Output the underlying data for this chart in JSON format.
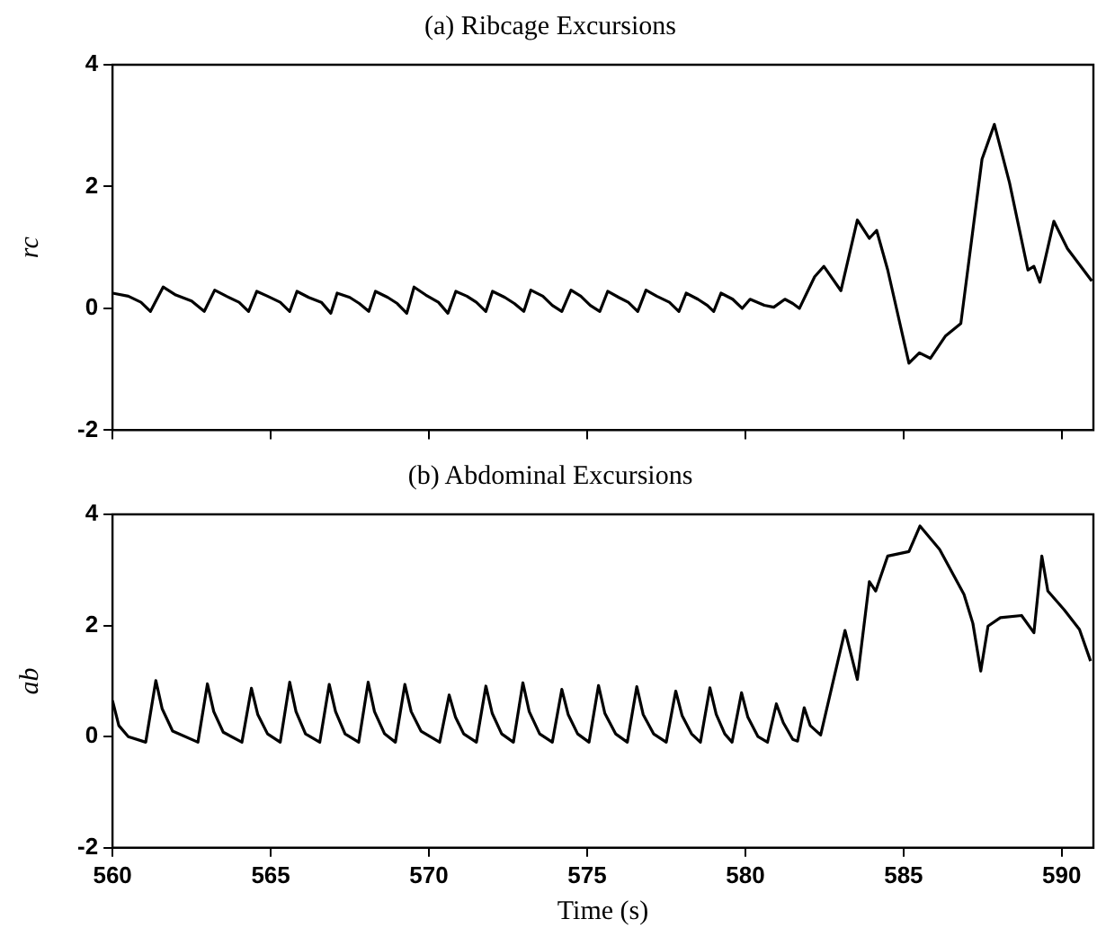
{
  "chart_data": [
    {
      "type": "line",
      "title": "(a) Ribcage Excursions",
      "ylabel": "rc",
      "marker": "none",
      "line_style": "solid",
      "tick_labels": "y",
      "xlim": [
        560,
        591
      ],
      "ylim": [
        -2,
        4
      ],
      "xticks": [
        560,
        565,
        570,
        575,
        580,
        585,
        590
      ],
      "yticks": [
        -2,
        0,
        2,
        4
      ],
      "series": [
        {
          "color": "#000000",
          "x": [
            560,
            560.5,
            560.9,
            561.2,
            561.6,
            562.0,
            562.5,
            562.9,
            563.23,
            563.6,
            564.0,
            564.3,
            564.56,
            564.9,
            565.3,
            565.6,
            565.83,
            566.2,
            566.6,
            566.9,
            567.1,
            567.5,
            567.8,
            568.1,
            568.31,
            568.7,
            569.0,
            569.3,
            569.53,
            569.9,
            570.3,
            570.6,
            570.85,
            571.2,
            571.5,
            571.8,
            572.01,
            572.4,
            572.7,
            573.0,
            573.22,
            573.6,
            573.9,
            574.2,
            574.49,
            574.8,
            575.1,
            575.4,
            575.65,
            576.0,
            576.3,
            576.6,
            576.86,
            577.2,
            577.6,
            577.9,
            578.13,
            578.5,
            578.8,
            579.0,
            579.23,
            579.6,
            579.9,
            580.15,
            580.6,
            580.9,
            581.25,
            581.5,
            581.71,
            582.19,
            582.48,
            583.02,
            583.54,
            583.92,
            584.15,
            584.5,
            585.17,
            585.5,
            585.85,
            586.33,
            586.81,
            587.48,
            587.87,
            588.35,
            588.93,
            589.12,
            589.31,
            589.75,
            590.18,
            590.95
          ],
          "values": [
            0.25,
            0.2,
            0.1,
            -0.05,
            0.35,
            0.22,
            0.12,
            -0.05,
            0.3,
            0.2,
            0.1,
            -0.05,
            0.28,
            0.2,
            0.1,
            -0.05,
            0.28,
            0.18,
            0.1,
            -0.08,
            0.25,
            0.18,
            0.08,
            -0.05,
            0.28,
            0.18,
            0.08,
            -0.08,
            0.35,
            0.22,
            0.1,
            -0.08,
            0.28,
            0.2,
            0.1,
            -0.05,
            0.28,
            0.18,
            0.08,
            -0.05,
            0.3,
            0.2,
            0.05,
            -0.05,
            0.3,
            0.2,
            0.05,
            -0.05,
            0.28,
            0.18,
            0.1,
            -0.05,
            0.3,
            0.2,
            0.1,
            -0.05,
            0.25,
            0.15,
            0.05,
            -0.05,
            0.25,
            0.15,
            0.0,
            0.15,
            0.05,
            0.02,
            0.15,
            0.08,
            0.0,
            0.52,
            0.69,
            0.29,
            1.45,
            1.15,
            1.28,
            0.63,
            -0.9,
            -0.73,
            -0.82,
            -0.45,
            -0.25,
            2.45,
            3.02,
            2.06,
            0.63,
            0.69,
            0.43,
            1.43,
            0.98,
            0.45
          ]
        }
      ]
    },
    {
      "type": "line",
      "title": "(b) Abdominal Excursions",
      "xlabel": "Time (s)",
      "ylabel": "ab",
      "marker": "none",
      "line_style": "solid",
      "xlim": [
        560,
        591
      ],
      "ylim": [
        -2,
        4
      ],
      "xticks": [
        560,
        565,
        570,
        575,
        580,
        585,
        590
      ],
      "yticks": [
        -2,
        0,
        2,
        4
      ],
      "series": [
        {
          "color": "#000000",
          "x": [
            560,
            560.2,
            560.5,
            561.05,
            561.37,
            561.57,
            561.9,
            562.7,
            563.0,
            563.2,
            563.5,
            564.09,
            564.39,
            564.59,
            564.9,
            565.3,
            565.6,
            565.8,
            566.1,
            566.55,
            566.85,
            567.05,
            567.35,
            567.78,
            568.08,
            568.28,
            568.6,
            568.94,
            569.24,
            569.44,
            569.75,
            570.34,
            570.64,
            570.84,
            571.1,
            571.5,
            571.8,
            572.0,
            572.3,
            572.67,
            572.97,
            573.17,
            573.5,
            573.9,
            574.2,
            574.4,
            574.7,
            575.06,
            575.36,
            575.56,
            575.9,
            576.27,
            576.57,
            576.77,
            577.1,
            577.5,
            577.8,
            578.0,
            578.3,
            578.58,
            578.88,
            579.08,
            579.35,
            579.58,
            579.88,
            580.08,
            580.4,
            580.7,
            580.98,
            581.2,
            581.5,
            581.65,
            581.86,
            582.05,
            582.38,
            583.15,
            583.54,
            583.92,
            584.12,
            584.5,
            585.17,
            585.52,
            586.14,
            586.91,
            587.19,
            587.44,
            587.67,
            588.06,
            588.73,
            589.12,
            589.37,
            589.56,
            590.08,
            590.56,
            590.91
          ],
          "values": [
            0.65,
            0.2,
            0.0,
            -0.1,
            1.01,
            0.5,
            0.1,
            -0.1,
            0.95,
            0.45,
            0.08,
            -0.1,
            0.87,
            0.4,
            0.05,
            -0.1,
            0.98,
            0.45,
            0.05,
            -0.1,
            0.94,
            0.45,
            0.05,
            -0.1,
            0.98,
            0.45,
            0.05,
            -0.1,
            0.94,
            0.45,
            0.1,
            -0.1,
            0.75,
            0.35,
            0.05,
            -0.1,
            0.91,
            0.42,
            0.05,
            -0.1,
            0.97,
            0.45,
            0.05,
            -0.1,
            0.85,
            0.4,
            0.05,
            -0.1,
            0.92,
            0.42,
            0.05,
            -0.1,
            0.9,
            0.4,
            0.05,
            -0.1,
            0.82,
            0.38,
            0.05,
            -0.1,
            0.88,
            0.4,
            0.05,
            -0.1,
            0.79,
            0.35,
            0.0,
            -0.1,
            0.59,
            0.25,
            -0.05,
            -0.08,
            0.52,
            0.2,
            0.03,
            1.91,
            1.03,
            2.79,
            2.62,
            3.25,
            3.33,
            3.79,
            3.37,
            2.56,
            2.04,
            1.18,
            1.99,
            2.14,
            2.18,
            1.87,
            3.25,
            2.62,
            2.28,
            1.93,
            1.36
          ]
        }
      ]
    }
  ]
}
